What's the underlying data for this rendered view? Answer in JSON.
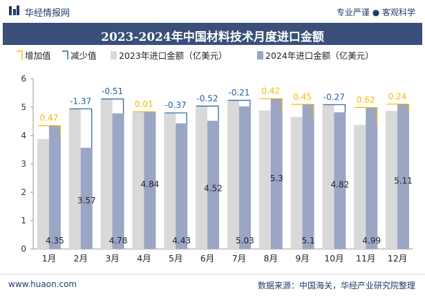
{
  "header": {
    "brand": "华经情报网",
    "tagline": "专业严谨 ● 客观科学"
  },
  "footer": {
    "site": "www.huaon.com",
    "source": "数据来源：中国海关，华经产业研究院整理"
  },
  "colors": {
    "increase": "#f5b800",
    "decrease": "#1f5fa0",
    "bar2023": "#d9d9d9",
    "bar2024": "#9aa6c4",
    "title_bg": "#3a4f7a"
  },
  "chart_data": {
    "type": "bar",
    "title": "2023-2024年中国材料技术月度进口金额",
    "categories": [
      "1月",
      "2月",
      "3月",
      "4月",
      "5月",
      "6月",
      "7月",
      "8月",
      "9月",
      "10月",
      "11月",
      "12月"
    ],
    "series": [
      {
        "name": "2023年进口金额（亿美元）",
        "values": [
          3.88,
          4.94,
          5.29,
          4.83,
          4.8,
          5.04,
          5.24,
          4.88,
          4.65,
          5.09,
          4.37,
          4.87
        ]
      },
      {
        "name": "2024年进口金额（亿美元）",
        "values": [
          4.35,
          3.57,
          4.78,
          4.84,
          4.43,
          4.52,
          5.03,
          5.3,
          5.1,
          4.82,
          4.99,
          5.11
        ]
      }
    ],
    "changes": [
      0.47,
      -1.37,
      -0.51,
      0.01,
      -0.37,
      -0.52,
      -0.21,
      0.42,
      0.45,
      -0.27,
      0.62,
      0.24
    ],
    "change_labels": [
      "0.47",
      "-1.37",
      "-0.51",
      "0.01",
      "-0.37",
      "-0.52",
      "-0.21",
      "0.42",
      "0.45",
      "-0.27",
      "0.62",
      "0.24"
    ],
    "value_labels": [
      "4.35",
      "3.57",
      "4.78",
      "4.84",
      "4.43",
      "4.52",
      "5.03",
      "5.3",
      "5.1",
      "4.82",
      "4.99",
      "5.11"
    ],
    "legend": [
      "增加值",
      "减少值",
      "2023年进口金额（亿美元）",
      "2024年进口金额（亿美元）"
    ],
    "legend_position": "top",
    "ylim": [
      0,
      6
    ],
    "yticks": [
      "0",
      "1",
      "2",
      "3",
      "4",
      "5",
      "6"
    ],
    "grid": false
  }
}
